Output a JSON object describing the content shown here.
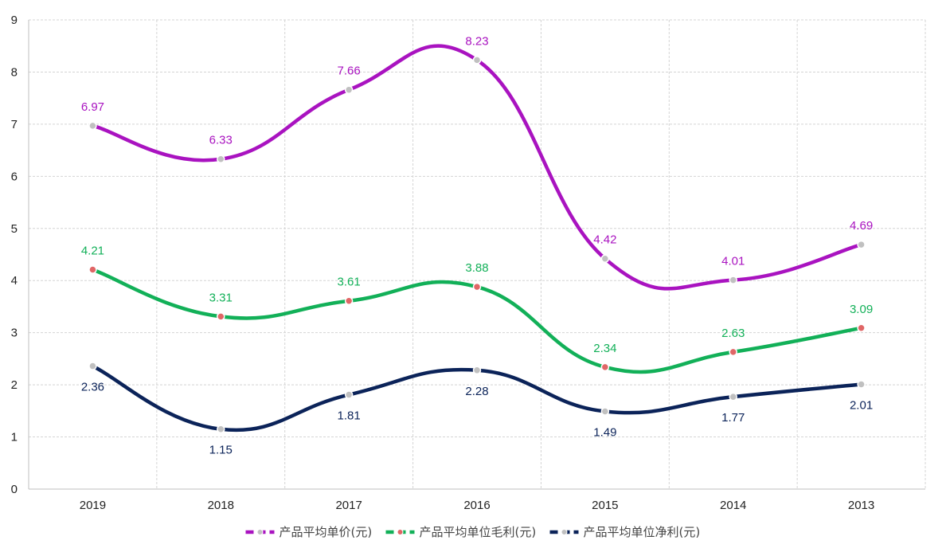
{
  "chart_data": {
    "type": "line",
    "title": "",
    "xlabel": "",
    "ylabel": "",
    "categories": [
      "2019",
      "2018",
      "2017",
      "2016",
      "2015",
      "2014",
      "2013"
    ],
    "ylim": [
      0,
      9
    ],
    "yticks": [
      "0",
      "1",
      "2",
      "3",
      "4",
      "5",
      "6",
      "7",
      "8",
      "9"
    ],
    "grid": true,
    "legend_position": "bottom-center",
    "series": [
      {
        "name": "产品平均单价(元)",
        "values": [
          6.97,
          6.33,
          7.66,
          8.23,
          4.42,
          4.01,
          4.69
        ],
        "labels": [
          "6.97",
          "6.33",
          "7.66",
          "8.23",
          "4.42",
          "4.01",
          "4.69"
        ],
        "color": "#a913c0",
        "marker_color": "#c0c0c0",
        "label_position": "above"
      },
      {
        "name": "产品平均单位毛利(元)",
        "values": [
          4.21,
          3.31,
          3.61,
          3.88,
          2.34,
          2.63,
          3.09
        ],
        "labels": [
          "4.21",
          "3.31",
          "3.61",
          "3.88",
          "2.34",
          "2.63",
          "3.09"
        ],
        "color": "#12b058",
        "marker_color": "#e06666",
        "label_position": "above"
      },
      {
        "name": "产品平均单位净利(元)",
        "values": [
          2.36,
          1.15,
          1.81,
          2.28,
          1.49,
          1.77,
          2.01
        ],
        "labels": [
          "2.36",
          "1.15",
          "1.81",
          "2.28",
          "1.49",
          "1.77",
          "2.01"
        ],
        "color": "#0b2359",
        "marker_color": "#c0c0c0",
        "label_position": "below"
      }
    ]
  }
}
